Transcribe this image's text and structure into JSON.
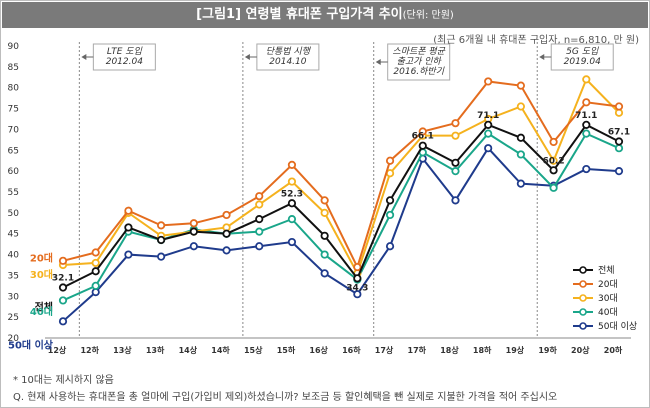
{
  "header": {
    "title": "[그림1] 연령별 휴대폰 구입가격 추이",
    "unit_note": "(단위: 만원)",
    "subtitle": "(최근 6개월 내 휴대폰 구입자, n=6,810, 만 원)"
  },
  "footnote": "* 10대는 제시하지 않음",
  "question": "Q. 현재 사용하는 휴대폰을 총 얼마에 구입(가입비 제외)하셨습니까? 보조금 등 할인혜택을 뺀 실제로 지불한 가격을 적어 주십시오",
  "chart_data": {
    "type": "line",
    "ylim": [
      20,
      90
    ],
    "yticks": [
      20,
      25,
      30,
      35,
      40,
      45,
      50,
      55,
      60,
      65,
      70,
      75,
      80,
      85,
      90
    ],
    "categories": [
      "12상",
      "12하",
      "13상",
      "13하",
      "14상",
      "14하",
      "15상",
      "15하",
      "16상",
      "16하",
      "17상",
      "17하",
      "18상",
      "18하",
      "19상",
      "19하",
      "20상",
      "20하"
    ],
    "grid": false,
    "legend_position": "right",
    "series": [
      {
        "name": "전체",
        "color": "#111111",
        "start_label": "전체",
        "values": [
          32.1,
          36.0,
          46.5,
          43.5,
          45.5,
          45.0,
          48.5,
          52.3,
          44.5,
          34.3,
          53.0,
          66.1,
          62.0,
          71.1,
          68.0,
          60.2,
          71.1,
          67.1
        ]
      },
      {
        "name": "20대",
        "color": "#e46c1e",
        "start_label": "20대",
        "values": [
          38.5,
          40.5,
          50.5,
          47.0,
          47.5,
          49.5,
          54.0,
          61.5,
          53.0,
          37.0,
          62.5,
          69.5,
          71.5,
          81.5,
          80.5,
          67.0,
          76.5,
          75.5
        ]
      },
      {
        "name": "30대",
        "color": "#f5b21e",
        "start_label": "30대",
        "values": [
          37.5,
          38.0,
          50.0,
          44.5,
          45.5,
          46.5,
          52.0,
          57.5,
          50.0,
          35.5,
          59.5,
          68.5,
          68.5,
          72.5,
          75.5,
          62.5,
          82.0,
          74.0
        ]
      },
      {
        "name": "40대",
        "color": "#1aa68a",
        "start_label": "40대",
        "values": [
          29.0,
          32.5,
          45.5,
          43.5,
          46.0,
          45.0,
          45.5,
          48.5,
          40.0,
          34.0,
          49.5,
          64.5,
          60.0,
          69.0,
          64.0,
          56.0,
          69.0,
          65.5
        ]
      },
      {
        "name": "50대 이상",
        "color": "#1f3b8c",
        "start_label": "50대 이상",
        "values": [
          24.0,
          31.0,
          40.0,
          39.5,
          42.0,
          41.0,
          42.0,
          43.0,
          35.5,
          30.5,
          42.0,
          63.0,
          53.0,
          65.5,
          57.0,
          56.5,
          60.5,
          60.0
        ]
      }
    ],
    "data_labels": [
      {
        "series": "전체",
        "index": 0,
        "text": "32.1"
      },
      {
        "series": "전체",
        "index": 7,
        "text": "52.3"
      },
      {
        "series": "전체",
        "index": 9,
        "text": "34.3"
      },
      {
        "series": "전체",
        "index": 11,
        "text": "66.1"
      },
      {
        "series": "전체",
        "index": 13,
        "text": "71.1"
      },
      {
        "series": "전체",
        "index": 15,
        "text": "60.2"
      },
      {
        "series": "전체",
        "index": 16,
        "text": "71.1"
      },
      {
        "series": "전체",
        "index": 17,
        "text": "67.1"
      }
    ],
    "annotations": [
      {
        "lines": [
          "LTE 도입",
          "2012.04"
        ],
        "between": [
          1,
          2
        ]
      },
      {
        "lines": [
          "단통법 시행",
          "2014.10"
        ],
        "between": [
          6,
          7
        ]
      },
      {
        "lines": [
          "스마트폰 평균",
          "출고가 인하",
          "2016.하반기"
        ],
        "between": [
          10,
          11
        ]
      },
      {
        "lines": [
          "5G 도입",
          "2019.04"
        ],
        "between": [
          15,
          16
        ]
      }
    ],
    "vlines_after_index": [
      0,
      5,
      9,
      14
    ]
  }
}
